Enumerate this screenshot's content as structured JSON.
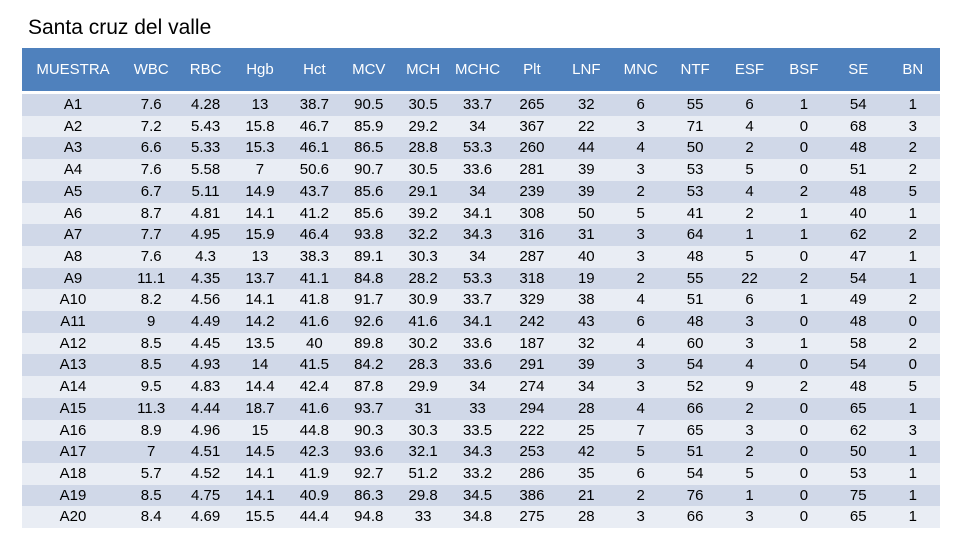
{
  "title": "Santa cruz del valle",
  "table": {
    "headers": [
      "MUESTRA",
      "WBC",
      "RBC",
      "Hgb",
      "Hct",
      "MCV",
      "MCH",
      "MCHC",
      "Plt",
      "LNF",
      "MNC",
      "NTF",
      "ESF",
      "BSF",
      "SE",
      "BN"
    ],
    "rows": [
      [
        "A1",
        "7.6",
        "4.28",
        "13",
        "38.7",
        "90.5",
        "30.5",
        "33.7",
        "265",
        "32",
        "6",
        "55",
        "6",
        "1",
        "54",
        "1"
      ],
      [
        "A2",
        "7.2",
        "5.43",
        "15.8",
        "46.7",
        "85.9",
        "29.2",
        "34",
        "367",
        "22",
        "3",
        "71",
        "4",
        "0",
        "68",
        "3"
      ],
      [
        "A3",
        "6.6",
        "5.33",
        "15.3",
        "46.1",
        "86.5",
        "28.8",
        "53.3",
        "260",
        "44",
        "4",
        "50",
        "2",
        "0",
        "48",
        "2"
      ],
      [
        "A4",
        "7.6",
        "5.58",
        "7",
        "50.6",
        "90.7",
        "30.5",
        "33.6",
        "281",
        "39",
        "3",
        "53",
        "5",
        "0",
        "51",
        "2"
      ],
      [
        "A5",
        "6.7",
        "5.11",
        "14.9",
        "43.7",
        "85.6",
        "29.1",
        "34",
        "239",
        "39",
        "2",
        "53",
        "4",
        "2",
        "48",
        "5"
      ],
      [
        "A6",
        "8.7",
        "4.81",
        "14.1",
        "41.2",
        "85.6",
        "39.2",
        "34.1",
        "308",
        "50",
        "5",
        "41",
        "2",
        "1",
        "40",
        "1"
      ],
      [
        "A7",
        "7.7",
        "4.95",
        "15.9",
        "46.4",
        "93.8",
        "32.2",
        "34.3",
        "316",
        "31",
        "3",
        "64",
        "1",
        "1",
        "62",
        "2"
      ],
      [
        "A8",
        "7.6",
        "4.3",
        "13",
        "38.3",
        "89.1",
        "30.3",
        "34",
        "287",
        "40",
        "3",
        "48",
        "5",
        "0",
        "47",
        "1"
      ],
      [
        "A9",
        "11.1",
        "4.35",
        "13.7",
        "41.1",
        "84.8",
        "28.2",
        "53.3",
        "318",
        "19",
        "2",
        "55",
        "22",
        "2",
        "54",
        "1"
      ],
      [
        "A10",
        "8.2",
        "4.56",
        "14.1",
        "41.8",
        "91.7",
        "30.9",
        "33.7",
        "329",
        "38",
        "4",
        "51",
        "6",
        "1",
        "49",
        "2"
      ],
      [
        "A11",
        "9",
        "4.49",
        "14.2",
        "41.6",
        "92.6",
        "41.6",
        "34.1",
        "242",
        "43",
        "6",
        "48",
        "3",
        "0",
        "48",
        "0"
      ],
      [
        "A12",
        "8.5",
        "4.45",
        "13.5",
        "40",
        "89.8",
        "30.2",
        "33.6",
        "187",
        "32",
        "4",
        "60",
        "3",
        "1",
        "58",
        "2"
      ],
      [
        "A13",
        "8.5",
        "4.93",
        "14",
        "41.5",
        "84.2",
        "28.3",
        "33.6",
        "291",
        "39",
        "3",
        "54",
        "4",
        "0",
        "54",
        "0"
      ],
      [
        "A14",
        "9.5",
        "4.83",
        "14.4",
        "42.4",
        "87.8",
        "29.9",
        "34",
        "274",
        "34",
        "3",
        "52",
        "9",
        "2",
        "48",
        "5"
      ],
      [
        "A15",
        "11.3",
        "4.44",
        "18.7",
        "41.6",
        "93.7",
        "31",
        "33",
        "294",
        "28",
        "4",
        "66",
        "2",
        "0",
        "65",
        "1"
      ],
      [
        "A16",
        "8.9",
        "4.96",
        "15",
        "44.8",
        "90.3",
        "30.3",
        "33.5",
        "222",
        "25",
        "7",
        "65",
        "3",
        "0",
        "62",
        "3"
      ],
      [
        "A17",
        "7",
        "4.51",
        "14.5",
        "42.3",
        "93.6",
        "32.1",
        "34.3",
        "253",
        "42",
        "5",
        "51",
        "2",
        "0",
        "50",
        "1"
      ],
      [
        "A18",
        "5.7",
        "4.52",
        "14.1",
        "41.9",
        "92.7",
        "51.2",
        "33.2",
        "286",
        "35",
        "6",
        "54",
        "5",
        "0",
        "53",
        "1"
      ],
      [
        "A19",
        "8.5",
        "4.75",
        "14.1",
        "40.9",
        "86.3",
        "29.8",
        "34.5",
        "386",
        "21",
        "2",
        "76",
        "1",
        "0",
        "75",
        "1"
      ],
      [
        "A20",
        "8.4",
        "4.69",
        "15.5",
        "44.4",
        "94.8",
        "33",
        "34.8",
        "275",
        "28",
        "3",
        "66",
        "3",
        "0",
        "65",
        "1"
      ]
    ]
  },
  "colors": {
    "header_bg": "#4f81bd",
    "row_odd": "#d0d8e8",
    "row_even": "#e9edf4"
  }
}
